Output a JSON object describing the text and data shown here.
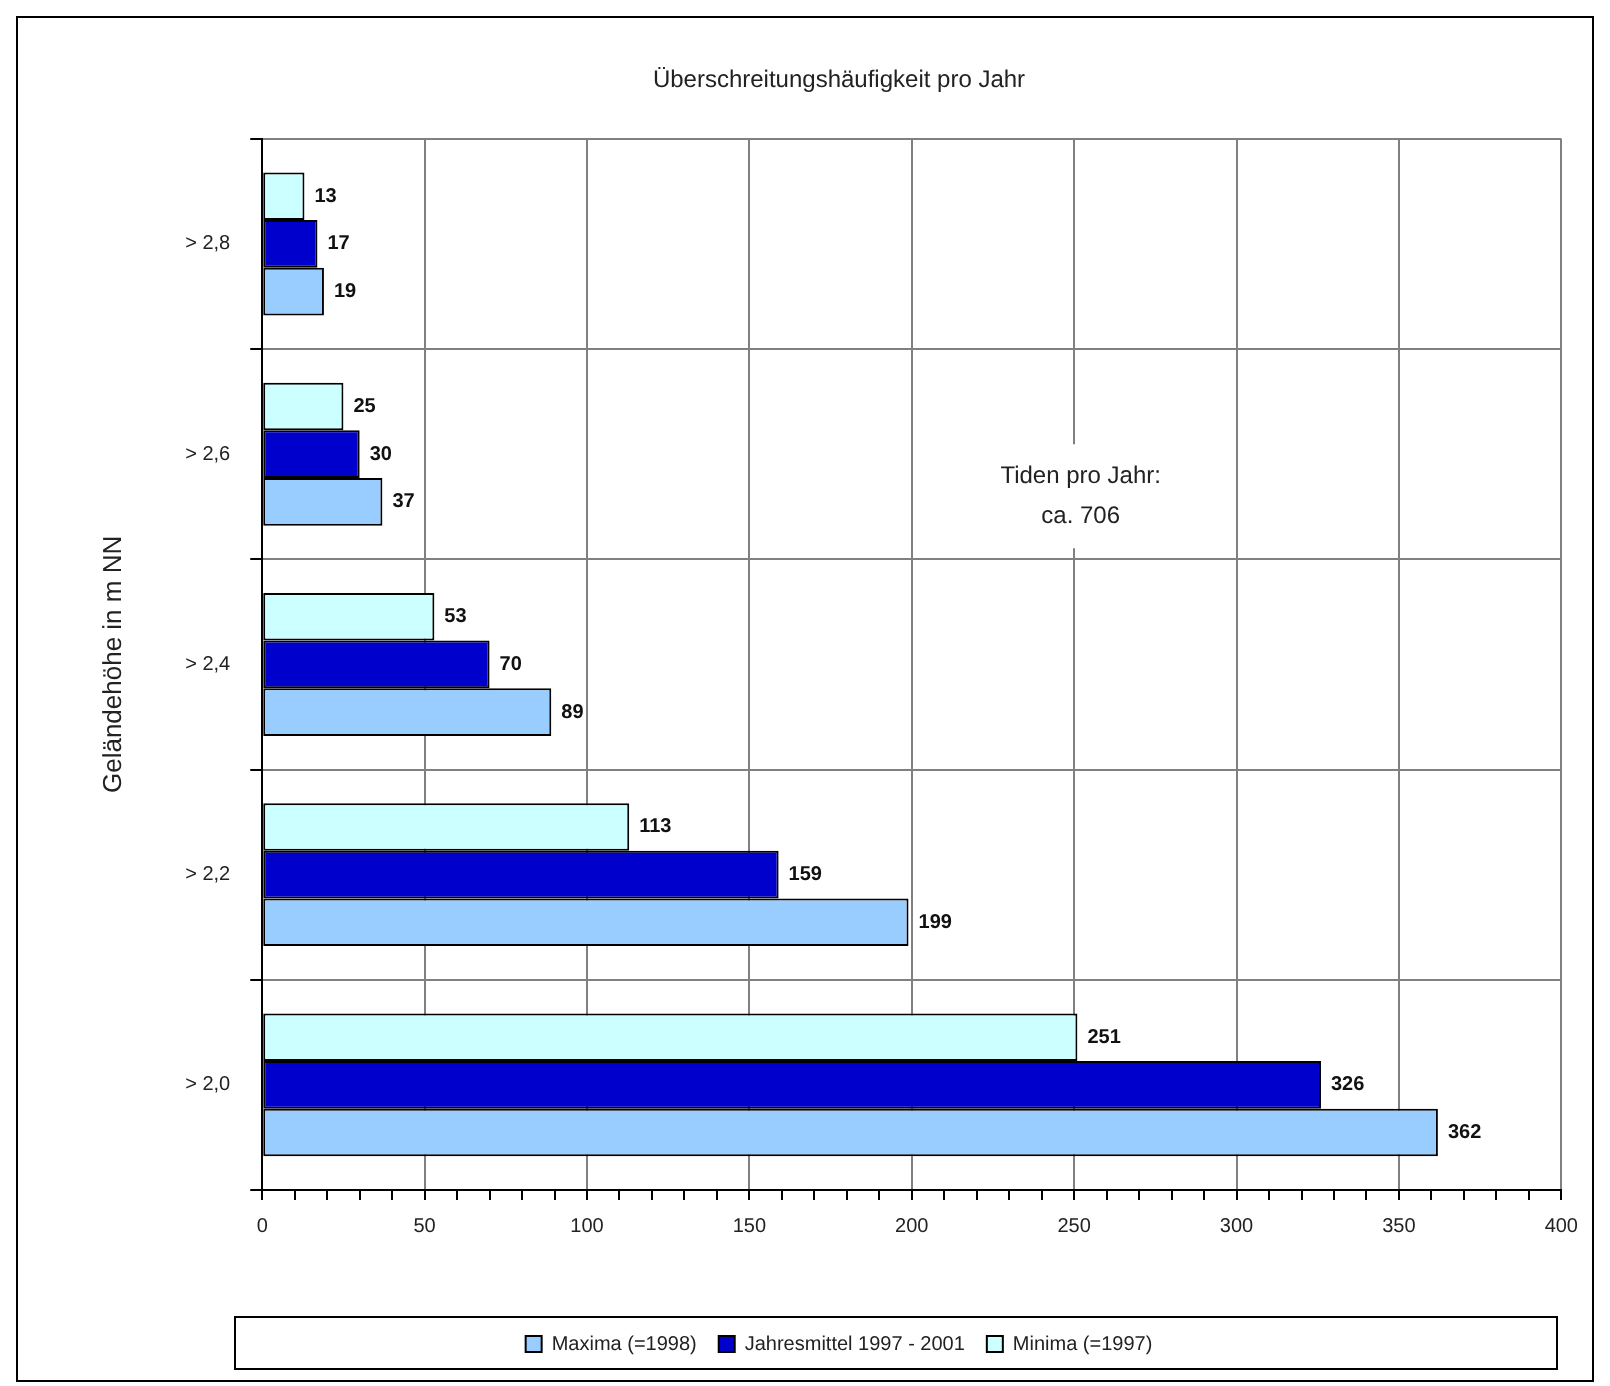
{
  "chart_data": {
    "type": "bar",
    "orientation": "horizontal",
    "title": "Überschreitungshäufigkeit pro Jahr",
    "ylabel": "Geländehöhe in m NN",
    "categories": [
      "> 2,8",
      "> 2,6",
      "> 2,4",
      "> 2,2",
      "> 2,0"
    ],
    "series": [
      {
        "name": "Maxima (=1998)",
        "color": "#99ccff",
        "values": [
          19,
          37,
          89,
          199,
          362
        ]
      },
      {
        "name": "Jahresmittel 1997 - 2001",
        "color": "#0000cc",
        "values": [
          17,
          30,
          70,
          159,
          326
        ]
      },
      {
        "name": "Minima (=1997)",
        "color": "#ccffff",
        "values": [
          13,
          25,
          53,
          113,
          251
        ]
      }
    ],
    "xlim": [
      0,
      400
    ],
    "xticks": [
      0,
      {
        "value": 10,
        "label": null
      },
      {
        "value": 20,
        "label": null
      },
      {
        "value": 30,
        "label": null
      },
      {
        "value": 40,
        "label": null
      },
      50,
      {
        "value": 60,
        "label": null
      },
      {
        "value": 70,
        "label": null
      },
      {
        "value": 80,
        "label": null
      },
      {
        "value": 90,
        "label": null
      },
      100,
      {
        "value": 110,
        "label": null
      },
      {
        "value": 120,
        "label": null
      },
      {
        "value": 130,
        "label": null
      },
      {
        "value": 140,
        "label": null
      },
      150,
      {
        "value": 160,
        "label": null
      },
      {
        "value": 170,
        "label": null
      },
      {
        "value": 180,
        "label": null
      },
      {
        "value": 190,
        "label": null
      },
      200,
      {
        "value": 210,
        "label": null
      },
      {
        "value": 220,
        "label": null
      },
      {
        "value": 230,
        "label": null
      },
      {
        "value": 240,
        "label": null
      },
      250,
      {
        "value": 260,
        "label": null
      },
      {
        "value": 270,
        "label": null
      },
      {
        "value": 280,
        "label": null
      },
      {
        "value": 290,
        "label": null
      },
      300,
      {
        "value": 310,
        "label": null
      },
      {
        "value": 320,
        "label": null
      },
      {
        "value": 330,
        "label": null
      },
      {
        "value": 340,
        "label": null
      },
      350,
      {
        "value": 360,
        "label": null
      },
      {
        "value": 370,
        "label": null
      },
      {
        "value": 380,
        "label": null
      },
      {
        "value": 390,
        "label": null
      },
      400
    ],
    "grid": true,
    "legend": "bottom",
    "data_labels": true,
    "annotations": [
      "Tiden pro Jahr:\nca. 706"
    ]
  }
}
